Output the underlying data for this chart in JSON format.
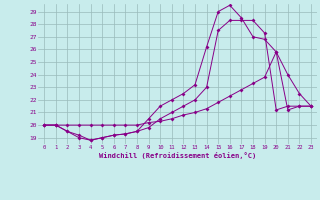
{
  "xlabel": "Windchill (Refroidissement éolien,°C)",
  "bg_color": "#c8ecec",
  "line_color": "#880088",
  "grid_color": "#99bbbb",
  "xlim": [
    -0.5,
    23.5
  ],
  "ylim": [
    18.5,
    29.6
  ],
  "xticks": [
    0,
    1,
    2,
    3,
    4,
    5,
    6,
    7,
    8,
    9,
    10,
    11,
    12,
    13,
    14,
    15,
    16,
    17,
    18,
    19,
    20,
    21,
    22,
    23
  ],
  "yticks": [
    19,
    20,
    21,
    22,
    23,
    24,
    25,
    26,
    27,
    28,
    29
  ],
  "series1_x": [
    0,
    1,
    2,
    3,
    4,
    5,
    6,
    7,
    8,
    9,
    10,
    11,
    12,
    13,
    14,
    15,
    16,
    17,
    18,
    19,
    20,
    21,
    22,
    23
  ],
  "series1_y": [
    20.0,
    20.0,
    19.5,
    19.0,
    18.8,
    19.0,
    19.2,
    19.3,
    19.5,
    20.5,
    21.5,
    22.0,
    22.5,
    23.2,
    26.2,
    29.0,
    29.5,
    28.5,
    27.0,
    26.8,
    25.8,
    24.0,
    22.5,
    21.5
  ],
  "series2_x": [
    0,
    1,
    2,
    3,
    4,
    5,
    6,
    7,
    8,
    9,
    10,
    11,
    12,
    13,
    14,
    15,
    16,
    17,
    18,
    19,
    20,
    21,
    22,
    23
  ],
  "series2_y": [
    20.0,
    20.0,
    19.5,
    19.2,
    18.8,
    19.0,
    19.2,
    19.3,
    19.5,
    19.8,
    20.5,
    21.0,
    21.5,
    22.0,
    23.0,
    27.5,
    28.3,
    28.3,
    28.3,
    27.3,
    21.2,
    21.5,
    21.5,
    21.5
  ],
  "series3_x": [
    0,
    1,
    2,
    3,
    4,
    5,
    6,
    7,
    8,
    9,
    10,
    11,
    12,
    13,
    14,
    15,
    16,
    17,
    18,
    19,
    20,
    21,
    22,
    23
  ],
  "series3_y": [
    20.0,
    20.0,
    20.0,
    20.0,
    20.0,
    20.0,
    20.0,
    20.0,
    20.0,
    20.2,
    20.3,
    20.5,
    20.8,
    21.0,
    21.3,
    21.8,
    22.3,
    22.8,
    23.3,
    23.8,
    25.8,
    21.2,
    21.5,
    21.5
  ]
}
